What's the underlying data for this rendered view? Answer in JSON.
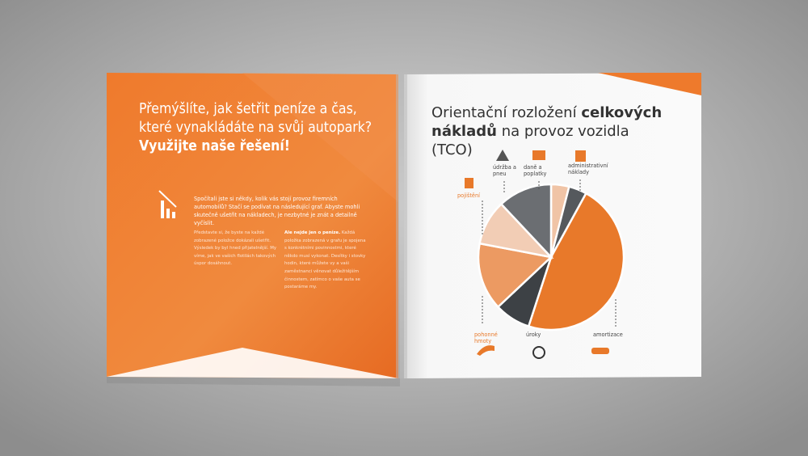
{
  "left_page": {
    "heading": "Přemýšlíte, jak šetřit peníze a čas, které vynakládáte na svůj autopark?",
    "heading_bold": "Využijte naše řešení!",
    "intro": "Spočítali jste si někdy, kolik vás stojí provoz firemních automobilů? Stačí se podívat na následující graf. Abyste mohli skutečně ušetřit na nákladech, je nezbytné je znát a detailně vyčíslit.",
    "column_1": "Představte si, že byste na každé zobrazené položce dokázali ušetřit. Výsledek by byl hned přijatelnější. My víme, jak ve vašich flotilách takových úspor dosáhnout.",
    "column_2_bold": "Ale nejde jen o peníze.",
    "column_2": "Každá položka zobrazená v grafu je spojena s konkrétními povinnostmi, které někdo musí vykonat. Desítky i stovky hodin, které můžete vy a vaši zaměstnanci věnovat důležitějším činnostem, zatímco o vaše auta se postaráme my."
  },
  "right_page": {
    "title_1": "Orientační rozložení",
    "title_bold": "celkových nákladů",
    "title_2": "na provoz vozidla (TCO)"
  },
  "chart_data": {
    "type": "pie",
    "categories": [
      "daně a poplatky",
      "administrativní náklady",
      "amortizace",
      "úroky",
      "pohonné hmoty",
      "pojištění",
      "údržba a pneu"
    ],
    "values": [
      4,
      4,
      47,
      8,
      15,
      10,
      12
    ],
    "colors": [
      "#f0c4a6",
      "#55595d",
      "#e8792a",
      "#3d4145",
      "#ec9a62",
      "#f2cdb5",
      "#6b6e72"
    ]
  }
}
